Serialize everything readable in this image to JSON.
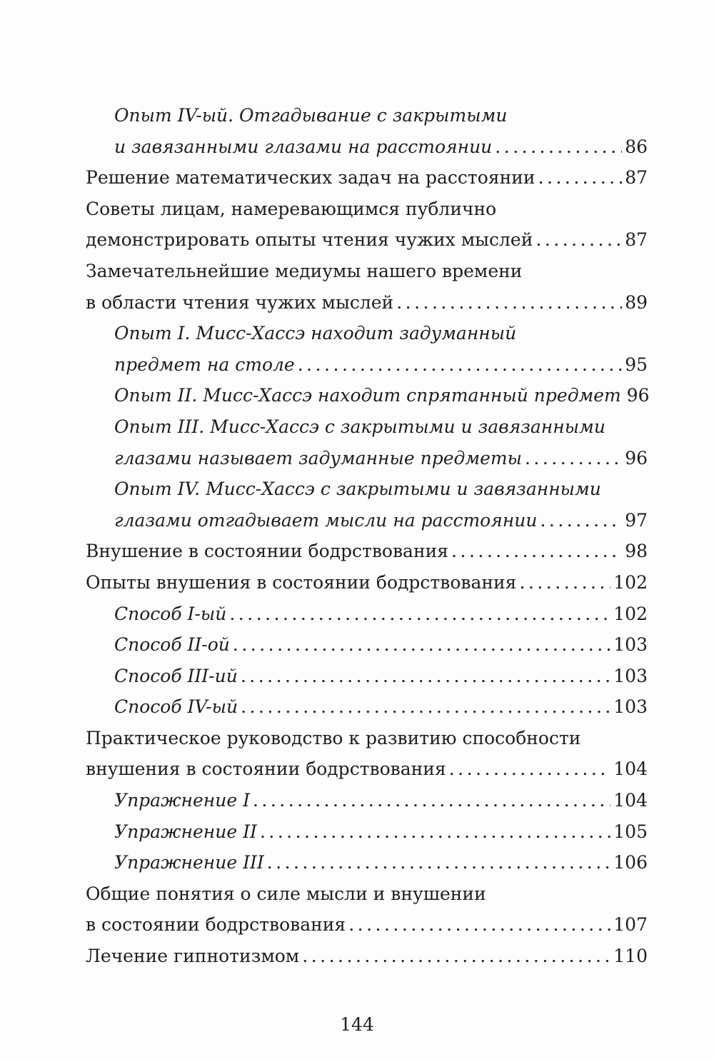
{
  "toc": [
    {
      "level": 2,
      "lines": [
        "Опыт IV-ый. Отгадывание с закрытыми",
        "и завязанными глазами на расстоянии"
      ],
      "page": "86"
    },
    {
      "level": 1,
      "lines": [
        "Решение математических задач на расстоянии"
      ],
      "page": "87"
    },
    {
      "level": 1,
      "lines": [
        "Советы лицам, намеревающимся публично",
        "демонстрировать опыты чтения чужих мыслей"
      ],
      "page": "87"
    },
    {
      "level": 1,
      "lines": [
        "Замечательнейшие медиумы нашего времени",
        "в области чтения чужих мыслей"
      ],
      "page": "89"
    },
    {
      "level": 2,
      "lines": [
        "Опыт I. Мисс-Хассэ находит задуманный",
        "предмет на столе"
      ],
      "page": "95"
    },
    {
      "level": 2,
      "lines": [
        "Опыт II. Мисс-Хассэ находит спрятанный предмет"
      ],
      "page": "96"
    },
    {
      "level": 2,
      "lines": [
        "Опыт III. Мисс-Хассэ с закрытыми и завязанными",
        "глазами называет задуманные предметы"
      ],
      "page": "96"
    },
    {
      "level": 2,
      "lines": [
        "Опыт IV. Мисс-Хассэ с закрытыми и завязанными",
        "глазами отгадывает мысли на расстоянии"
      ],
      "page": "97"
    },
    {
      "level": 1,
      "lines": [
        "Внушение в состоянии бодрствования"
      ],
      "page": "98"
    },
    {
      "level": 1,
      "lines": [
        "Опыты внушения в состоянии бодрствования"
      ],
      "page": "102"
    },
    {
      "level": 2,
      "lines": [
        "Способ I-ый"
      ],
      "page": "102"
    },
    {
      "level": 2,
      "lines": [
        "Способ II-ой"
      ],
      "page": "103"
    },
    {
      "level": 2,
      "lines": [
        "Способ III-ий"
      ],
      "page": "103"
    },
    {
      "level": 2,
      "lines": [
        "Способ IV-ый"
      ],
      "page": "103"
    },
    {
      "level": 1,
      "lines": [
        "Практическое руководство к развитию способности",
        "внушения в состоянии бодрствования"
      ],
      "page": "104"
    },
    {
      "level": 2,
      "lines": [
        "Упражнение I"
      ],
      "page": "104"
    },
    {
      "level": 2,
      "lines": [
        "Упражнение II"
      ],
      "page": "105"
    },
    {
      "level": 2,
      "lines": [
        "Упражнение III"
      ],
      "page": "106"
    },
    {
      "level": 1,
      "lines": [
        "Общие понятия о силе мысли и внушении",
        "в состоянии бодрствования"
      ],
      "page": "107"
    },
    {
      "level": 1,
      "lines": [
        "Лечение гипнотизмом"
      ],
      "page": "110"
    }
  ],
  "page_number": "144"
}
